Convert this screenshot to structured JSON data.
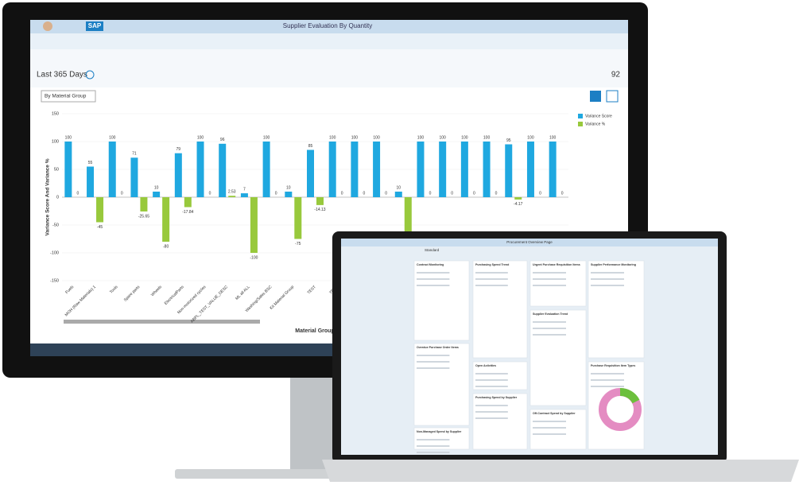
{
  "header": {
    "logo": "SAP",
    "title": "Supplier Evaluation By Quantity",
    "period": "Last 365 Days",
    "count": "92",
    "filter": "By Material Group"
  },
  "chart_data": {
    "type": "bar",
    "y_label": "Variance Score And Variance %",
    "x_label": "Material Group",
    "categories": [
      "Fuels",
      "MOH (Raw Materials) 1",
      "Tools",
      "Spare parts",
      "Wheels",
      "ElectricalParts",
      "Non-motorized cycles",
      "ABPL_TEST_VALUE_DESC",
      "ML all ALL",
      "Washing/Sales BSC",
      "Kit Material Group",
      "TEST",
      "TEST",
      null,
      null,
      null,
      null,
      null,
      null,
      null,
      null,
      null,
      null
    ],
    "series": [
      {
        "name": "Variance Score",
        "color": "#1fa8e0",
        "values": [
          100,
          55,
          100,
          71,
          10,
          79,
          100,
          96,
          7,
          100,
          10,
          85,
          100,
          100,
          100,
          10,
          100,
          100,
          100,
          100,
          95,
          100,
          100
        ]
      },
      {
        "name": "Variance %",
        "color": "#98c93c",
        "values": [
          0,
          -45,
          0,
          -25.65,
          -80,
          -17.84,
          0,
          2.53,
          -100,
          0,
          -75,
          -14.13,
          0,
          0,
          0,
          -100,
          0,
          0,
          0,
          0,
          -4.17,
          0,
          0
        ]
      }
    ],
    "ylim": [
      -150,
      150
    ],
    "yticks": [
      -150,
      -100,
      -50,
      0,
      50,
      100,
      150
    ],
    "grid": true
  },
  "laptop": {
    "title": "Procurement Overview Page",
    "view": "Standard",
    "cards": [
      "Contract Monitoring",
      "Purchasing Spend Trend",
      "Urgent Purchase Requisition Items",
      "Supplier Performance Monitoring",
      "Supplier Evaluation Trend",
      "Overdue Purchase Order Items",
      "Open Activities",
      "Purchasing Spend by Supplier",
      "Off-Contract Spend by Supplier",
      "Purchase Requisition Item Types",
      "Non-Managed Spend by Supplier"
    ]
  }
}
